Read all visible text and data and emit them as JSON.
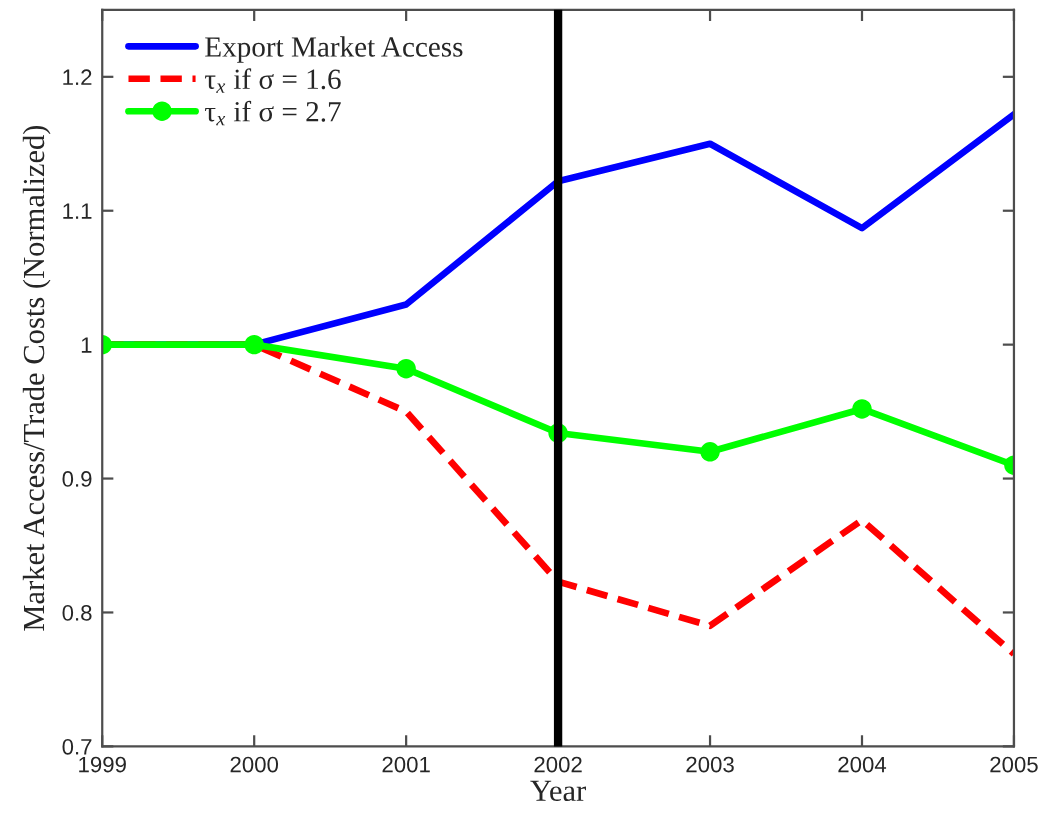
{
  "chart_data": {
    "type": "line",
    "xlabel": "Year",
    "ylabel": "Market Access/Trade Costs (Normalized)",
    "x": [
      1999,
      2000,
      2001,
      2002,
      2003,
      2004,
      2005
    ],
    "series": [
      {
        "name": "Export Market Access",
        "color": "#0000ff",
        "line_style": "solid",
        "marker": "none",
        "values": [
          1.0,
          1.0,
          1.03,
          1.122,
          1.15,
          1.087,
          1.172
        ]
      },
      {
        "name": "τ$_{x}$ if σ = 1.6",
        "color": "#ff0000",
        "line_style": "dashed",
        "marker": "none",
        "values": [
          1.0,
          1.0,
          0.95,
          0.823,
          0.79,
          0.869,
          0.769
        ]
      },
      {
        "name": "τ$_{x}$ if σ = 2.7",
        "color": "#00ff00",
        "line_style": "solid",
        "marker": "circle",
        "values": [
          1.0,
          1.0,
          0.982,
          0.934,
          0.92,
          0.952,
          0.91
        ]
      }
    ],
    "xlim": [
      1999,
      2005
    ],
    "ylim": [
      0.7,
      1.25
    ],
    "xticks": [
      1999,
      2000,
      2001,
      2002,
      2003,
      2004,
      2005
    ],
    "yticks": [
      0.7,
      0.8,
      0.9,
      1,
      1.1,
      1.2
    ],
    "ref_lines": [
      {
        "axis": "x",
        "value": 2002,
        "color": "#000000"
      }
    ],
    "legend": "top left",
    "grid": false
  }
}
